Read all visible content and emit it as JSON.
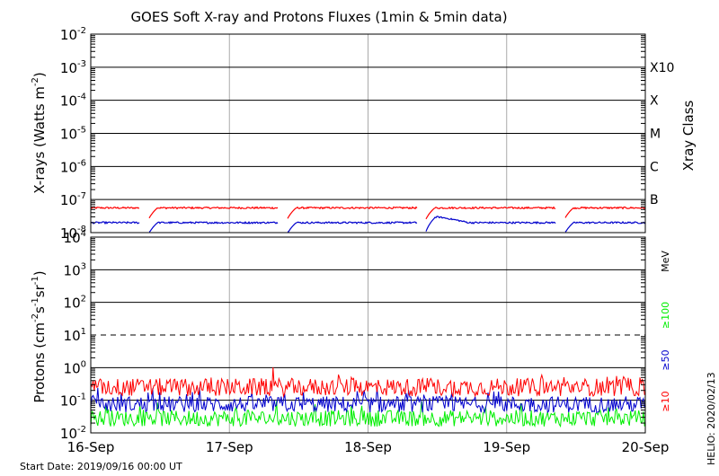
{
  "chart_data": [
    {
      "type": "line",
      "panel": "xray",
      "title": "GOES Soft X-ray and Protons Fluxes   (1min & 5min data)",
      "ylabel": "X-rays (Watts m",
      "ylabel_exp": "-2",
      "ylabel_close": ")",
      "yscale": "log",
      "ylim": [
        1e-08,
        0.01
      ],
      "yticks": [
        {
          "base": "10",
          "exp": "-2"
        },
        {
          "base": "10",
          "exp": "-3"
        },
        {
          "base": "10",
          "exp": "-4"
        },
        {
          "base": "10",
          "exp": "-5"
        },
        {
          "base": "10",
          "exp": "-6"
        },
        {
          "base": "10",
          "exp": "-7"
        },
        {
          "base": "10",
          "exp": "-8"
        }
      ],
      "xlim": [
        "2019-09-16T00:00",
        "2019-09-20T00:00"
      ],
      "right_axis_label": "Xray Class",
      "classes": [
        {
          "label": "X10",
          "value": 0.001
        },
        {
          "label": "X",
          "value": 0.0001
        },
        {
          "label": "M",
          "value": 1e-05
        },
        {
          "label": "C",
          "value": 1e-06
        },
        {
          "label": "B",
          "value": 1e-07
        }
      ],
      "series": [
        {
          "color": "#ff0000",
          "baseline": 5.6e-08,
          "dropouts": [
            "2019-09-16T10:00",
            "2019-09-17T10:00",
            "2019-09-18T10:00",
            "2019-09-19T10:00"
          ],
          "gaps": [
            [
              "2019-09-16T08:30",
              "2019-09-16T10:00"
            ],
            [
              "2019-09-17T08:30",
              "2019-09-17T10:00"
            ],
            [
              "2019-09-18T08:30",
              "2019-09-18T10:00"
            ],
            [
              "2019-09-19T08:30",
              "2019-09-19T10:00"
            ]
          ]
        },
        {
          "color": "#0000cc",
          "baseline": 2e-08,
          "bump": {
            "time": "2019-09-18T12:00",
            "value": 3e-08
          },
          "dropouts": [
            "2019-09-16T10:00",
            "2019-09-17T10:00",
            "2019-09-18T10:00",
            "2019-09-19T10:00"
          ],
          "gaps": [
            [
              "2019-09-16T08:30",
              "2019-09-16T10:00"
            ],
            [
              "2019-09-17T08:30",
              "2019-09-17T10:00"
            ],
            [
              "2019-09-18T08:30",
              "2019-09-18T10:00"
            ],
            [
              "2019-09-19T08:30",
              "2019-09-19T10:00"
            ]
          ]
        }
      ]
    },
    {
      "type": "line",
      "panel": "protons",
      "ylabel": "Protons (cm",
      "ylabel_parts": [
        {
          "t": "Protons (cm",
          "sup": false
        },
        {
          "t": "-2",
          "sup": true
        },
        {
          "t": "s",
          "sup": false
        },
        {
          "t": "-1",
          "sup": true
        },
        {
          "t": "sr",
          "sup": false
        },
        {
          "t": "-1",
          "sup": true
        },
        {
          "t": ")",
          "sup": false
        }
      ],
      "yscale": "log",
      "ylim": [
        0.01,
        10000
      ],
      "yticks": [
        {
          "base": "10",
          "exp": "4"
        },
        {
          "base": "10",
          "exp": "3"
        },
        {
          "base": "10",
          "exp": "2"
        },
        {
          "base": "10",
          "exp": "1"
        },
        {
          "base": "10",
          "exp": "0"
        },
        {
          "base": "10",
          "exp": "-1"
        },
        {
          "base": "10",
          "exp": "-2"
        }
      ],
      "threshold_dashed": 10,
      "unit_label": "MeV",
      "xlim": [
        "2019-09-16T00:00",
        "2019-09-20T00:00"
      ],
      "series": [
        {
          "name": "≥10",
          "color": "#ff0000",
          "baseline": 0.25
        },
        {
          "name": "≥50",
          "color": "#0000cc",
          "baseline": 0.075
        },
        {
          "name": "≥100",
          "color": "#00ee00",
          "baseline": 0.028
        }
      ]
    }
  ],
  "xaxis": {
    "ticks": [
      "16-Sep",
      "17-Sep",
      "18-Sep",
      "19-Sep",
      "20-Sep"
    ]
  },
  "footer": {
    "start_date": "Start Date: 2019/09/16 00:00 UT",
    "credit": "HELIO: 2020/02/13"
  },
  "colors": {
    "axes": "#000000",
    "grid_minor": "#aaaaaa",
    "background": "#ffffff"
  }
}
